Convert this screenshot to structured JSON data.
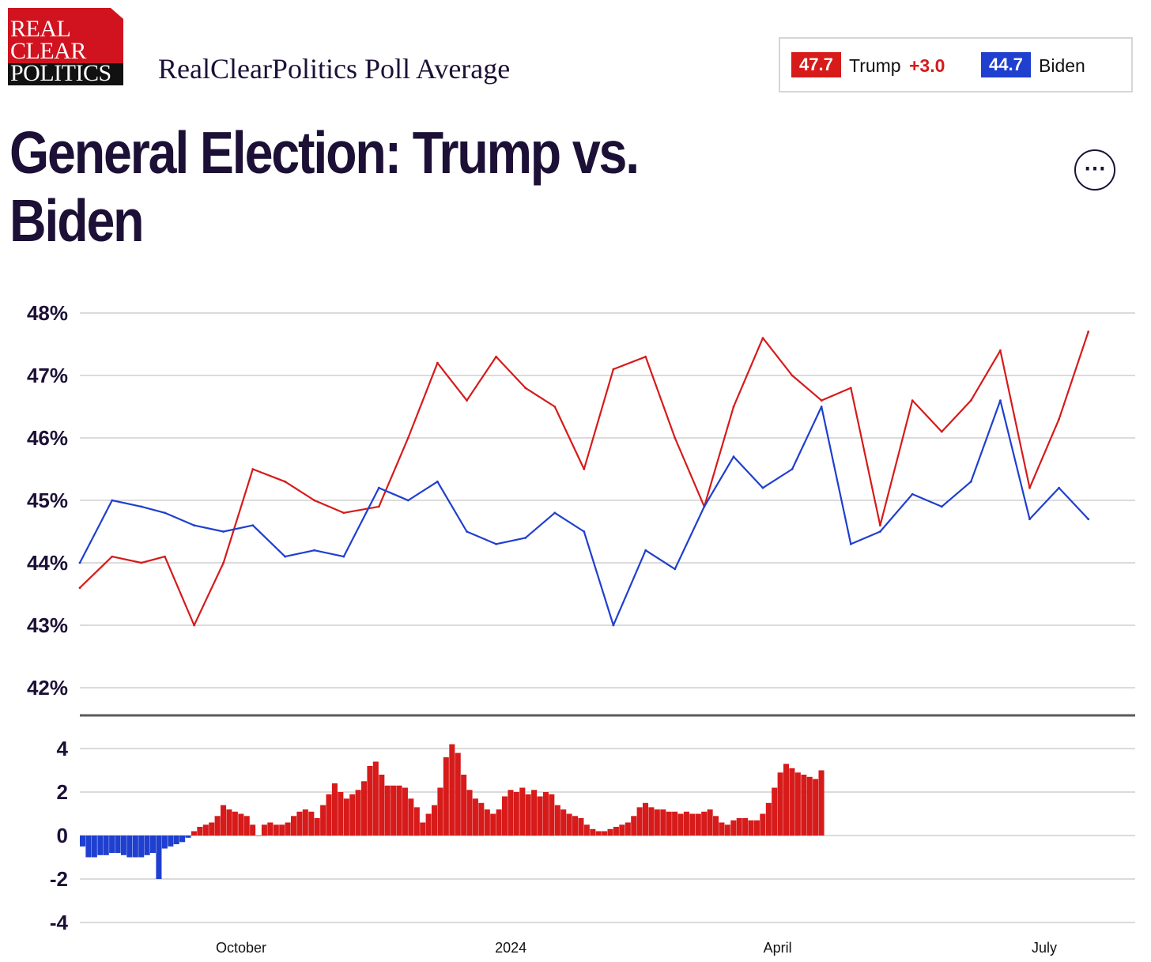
{
  "logo": {
    "line1": "REAL",
    "line2": "CLEAR",
    "line3": "POLITICS"
  },
  "header": {
    "site_title": "RealClearPolitics Poll Average"
  },
  "legend": {
    "trump": {
      "value": "47.7",
      "name": "Trump",
      "lead": "+3.0"
    },
    "biden": {
      "value": "44.7",
      "name": "Biden"
    }
  },
  "page_title": "General Election: Trump vs. Biden",
  "more_button": "⋯",
  "colors": {
    "trump": "#d71a1a",
    "biden": "#1f3fcf",
    "text": "#1c1036",
    "grid": "#cfcfcf"
  },
  "chart_data": [
    {
      "type": "line",
      "title": "",
      "ylim": [
        42,
        48
      ],
      "yticks": [
        42,
        43,
        44,
        45,
        46,
        47,
        48
      ],
      "ytick_labels": [
        "42%",
        "43%",
        "44%",
        "45%",
        "46%",
        "47%",
        "48%"
      ],
      "xtick_labels": [
        "October",
        "2024",
        "April",
        "July"
      ],
      "x": [
        "2023-08-07",
        "2023-08-18",
        "2023-08-28",
        "2023-09-05",
        "2023-09-15",
        "2023-09-25",
        "2023-10-05",
        "2023-10-16",
        "2023-10-26",
        "2023-11-05",
        "2023-11-17",
        "2023-11-27",
        "2023-12-07",
        "2023-12-17",
        "2023-12-27",
        "2024-01-06",
        "2024-01-16",
        "2024-01-26",
        "2024-02-05",
        "2024-02-16",
        "2024-02-26",
        "2024-03-07",
        "2024-03-17",
        "2024-03-27",
        "2024-04-06",
        "2024-04-16",
        "2024-04-26",
        "2024-05-06",
        "2024-05-17",
        "2024-05-27",
        "2024-06-06",
        "2024-06-16",
        "2024-06-26",
        "2024-07-06",
        "2024-07-16"
      ],
      "series": [
        {
          "name": "Trump",
          "color": "#d71a1a",
          "values": [
            43.6,
            44.1,
            44.0,
            44.1,
            43.0,
            44.0,
            45.5,
            45.3,
            45.0,
            44.8,
            44.9,
            46.0,
            47.2,
            46.6,
            47.3,
            46.8,
            46.5,
            45.5,
            47.1,
            47.3,
            46.0,
            44.9,
            46.5,
            47.6,
            47.0,
            46.6,
            46.8,
            44.6,
            46.6,
            46.1,
            46.6,
            47.4,
            45.2,
            46.3,
            47.7
          ]
        },
        {
          "name": "Biden",
          "color": "#1f3fcf",
          "values": [
            44.0,
            45.0,
            44.9,
            44.8,
            44.6,
            44.5,
            44.6,
            44.1,
            44.2,
            44.1,
            45.2,
            45.0,
            45.3,
            44.5,
            44.3,
            44.4,
            44.8,
            44.5,
            43.0,
            44.2,
            43.9,
            44.9,
            45.7,
            45.2,
            45.5,
            46.5,
            44.3,
            44.5,
            45.1,
            44.9,
            45.3,
            46.6,
            44.7,
            45.2,
            44.7
          ]
        }
      ]
    },
    {
      "type": "bar",
      "title": "",
      "ylim": [
        -4,
        4
      ],
      "yticks": [
        -4,
        -2,
        0,
        2,
        4
      ],
      "ytick_labels": [
        "-4",
        "-2",
        "0",
        "2",
        "4"
      ],
      "x_start": "2023-08-07",
      "x_step_days": 2,
      "values": [
        -0.5,
        -1.0,
        -1.0,
        -0.9,
        -0.9,
        -0.8,
        -0.8,
        -0.9,
        -1.0,
        -1.0,
        -1.0,
        -0.9,
        -0.8,
        -2.0,
        -0.6,
        -0.5,
        -0.4,
        -0.3,
        -0.1,
        0.2,
        0.4,
        0.5,
        0.6,
        0.9,
        1.4,
        1.2,
        1.1,
        1.0,
        0.9,
        0.5,
        0.0,
        0.5,
        0.6,
        0.5,
        0.5,
        0.6,
        0.9,
        1.1,
        1.2,
        1.1,
        0.8,
        1.4,
        1.9,
        2.4,
        2.0,
        1.7,
        1.9,
        2.1,
        2.5,
        3.2,
        3.4,
        2.8,
        2.3,
        2.3,
        2.3,
        2.2,
        1.7,
        1.3,
        0.6,
        1.0,
        1.4,
        2.2,
        3.6,
        4.2,
        3.8,
        2.8,
        2.1,
        1.7,
        1.5,
        1.2,
        1.0,
        1.2,
        1.8,
        2.1,
        2.0,
        2.2,
        1.9,
        2.1,
        1.8,
        2.0,
        1.9,
        1.4,
        1.2,
        1.0,
        0.9,
        0.8,
        0.5,
        0.3,
        0.2,
        0.2,
        0.3,
        0.4,
        0.5,
        0.6,
        0.9,
        1.3,
        1.5,
        1.3,
        1.2,
        1.2,
        1.1,
        1.1,
        1.0,
        1.1,
        1.0,
        1.0,
        1.1,
        1.2,
        0.9,
        0.6,
        0.5,
        0.7,
        0.8,
        0.8,
        0.7,
        0.7,
        1.0,
        1.5,
        2.2,
        2.9,
        3.3,
        3.1,
        2.9,
        2.8,
        2.7,
        2.6,
        3.0
      ]
    }
  ]
}
